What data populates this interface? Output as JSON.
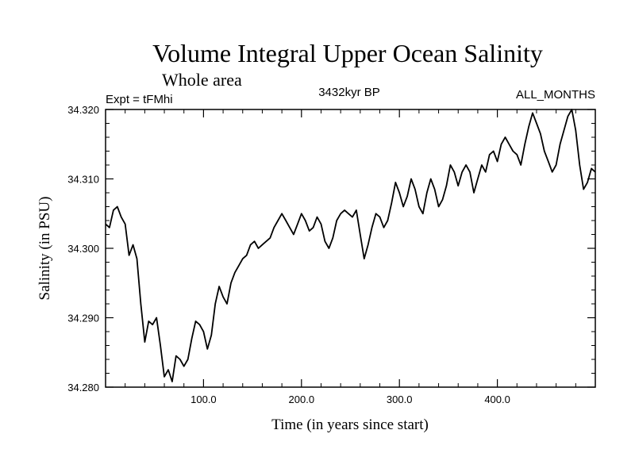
{
  "chart_data": {
    "type": "line",
    "title": "Volume Integral Upper Ocean Salinity",
    "subtitle": "Whole area",
    "experiment_label": "Expt = tFMhi",
    "period_label": "3432kyr BP",
    "months_label": "ALL_MONTHS",
    "xlabel": "Time (in years since start)",
    "ylabel": "Salinity (in PSU)",
    "xlim": [
      0,
      500
    ],
    "ylim": [
      34.28,
      34.32
    ],
    "x_ticks": [
      100,
      200,
      300,
      400
    ],
    "x_tick_labels": [
      "100.0",
      "200.0",
      "300.0",
      "400.0"
    ],
    "y_ticks": [
      34.28,
      34.29,
      34.3,
      34.31,
      34.32
    ],
    "y_tick_labels": [
      "34.280",
      "34.290",
      "34.300",
      "34.310",
      "34.320"
    ],
    "grid": false,
    "series": [
      {
        "name": "Salinity",
        "color": "#000000",
        "x": [
          0,
          4,
          8,
          12,
          16,
          20,
          24,
          28,
          32,
          36,
          40,
          44,
          48,
          52,
          56,
          60,
          64,
          68,
          72,
          76,
          80,
          84,
          88,
          92,
          96,
          100,
          104,
          108,
          112,
          116,
          120,
          124,
          128,
          132,
          136,
          140,
          144,
          148,
          152,
          156,
          160,
          164,
          168,
          172,
          176,
          180,
          184,
          188,
          192,
          196,
          200,
          204,
          208,
          212,
          216,
          220,
          224,
          228,
          232,
          236,
          240,
          244,
          248,
          252,
          256,
          260,
          264,
          268,
          272,
          276,
          280,
          284,
          288,
          292,
          296,
          300,
          304,
          308,
          312,
          316,
          320,
          324,
          328,
          332,
          336,
          340,
          344,
          348,
          352,
          356,
          360,
          364,
          368,
          372,
          376,
          380,
          384,
          388,
          392,
          396,
          400,
          404,
          408,
          412,
          416,
          420,
          424,
          428,
          432,
          436,
          440,
          444,
          448,
          452,
          456,
          460,
          464,
          468,
          472,
          476,
          480,
          484,
          488,
          492,
          496,
          500
        ],
        "values": [
          34.3035,
          34.303,
          34.3055,
          34.306,
          34.3045,
          34.3035,
          34.299,
          34.3005,
          34.2985,
          34.292,
          34.2865,
          34.2895,
          34.289,
          34.29,
          34.286,
          34.2815,
          34.2825,
          34.2808,
          34.2845,
          34.284,
          34.283,
          34.284,
          34.287,
          34.2895,
          34.289,
          34.288,
          34.2855,
          34.2875,
          34.292,
          34.2945,
          34.293,
          34.292,
          34.295,
          34.2965,
          34.2975,
          34.2985,
          34.299,
          34.3005,
          34.301,
          34.3,
          34.3005,
          34.301,
          34.3015,
          34.303,
          34.304,
          34.305,
          34.304,
          34.303,
          34.302,
          34.3035,
          34.305,
          34.304,
          34.3025,
          34.303,
          34.3045,
          34.3035,
          34.301,
          34.3,
          34.3015,
          34.304,
          34.305,
          34.3055,
          34.305,
          34.3045,
          34.3055,
          34.302,
          34.2985,
          34.3005,
          34.303,
          34.305,
          34.3045,
          34.303,
          34.304,
          34.3065,
          34.3095,
          34.308,
          34.306,
          34.3075,
          34.31,
          34.3085,
          34.306,
          34.305,
          34.308,
          34.31,
          34.3085,
          34.306,
          34.307,
          34.309,
          34.312,
          34.311,
          34.309,
          34.311,
          34.312,
          34.311,
          34.308,
          34.31,
          34.312,
          34.311,
          34.3135,
          34.314,
          34.3125,
          34.315,
          34.316,
          34.315,
          34.314,
          34.3135,
          34.312,
          34.315,
          34.3175,
          34.3195,
          34.318,
          34.3165,
          34.314,
          34.3125,
          34.311,
          34.312,
          34.315,
          34.317,
          34.319,
          34.32,
          34.317,
          34.312,
          34.3085,
          34.3095,
          34.3115,
          34.311
        ]
      }
    ]
  }
}
